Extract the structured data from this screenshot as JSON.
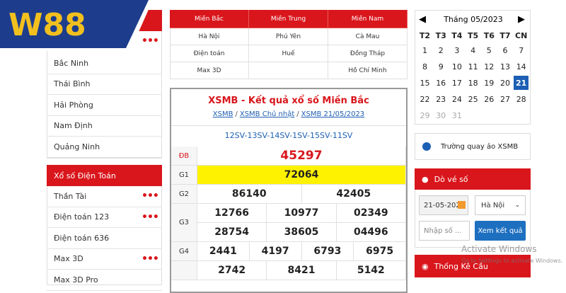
{
  "logo": "W88",
  "sidebar": {
    "province_list": [
      "Bắc Ninh",
      "Thái Bình",
      "Hải Phòng",
      "Nam Định",
      "Quảng Ninh"
    ],
    "dien_toan": {
      "title": "Xổ số Điện Toán",
      "items": [
        {
          "label": "Thần Tài",
          "has_more": true
        },
        {
          "label": "Điện toán 123",
          "has_more": true
        },
        {
          "label": "Điện toán 636",
          "has_more": false
        },
        {
          "label": "Max 3D",
          "has_more": true
        },
        {
          "label": "Max 3D Pro",
          "has_more": false
        }
      ]
    }
  },
  "regions": {
    "headers": [
      "Miền Bắc",
      "Miền Trung",
      "Miền Nam"
    ],
    "rows": [
      [
        "Hà Nội",
        "Phú Yên",
        "Cà Mau"
      ],
      [
        "Điện toán",
        "Huế",
        "Đồng Tháp"
      ],
      [
        "Max 3D",
        null,
        "Hồ Chí Minh"
      ]
    ]
  },
  "results": {
    "title": "XSMB - Kết quả xổ số Miền Bắc",
    "breadcrumb": [
      "XSMB",
      "XSMB Chủ nhật",
      "XSMB 21/05/2023"
    ],
    "separator": "/",
    "codes": "12SV-13SV-14SV-1SV-15SV-11SV",
    "prizes": [
      {
        "label": "ĐB",
        "rows": [
          [
            "45297"
          ]
        ],
        "special": true
      },
      {
        "label": "G1",
        "rows": [
          [
            "72064"
          ]
        ],
        "highlight": true
      },
      {
        "label": "G2",
        "rows": [
          [
            "86140",
            "42405"
          ]
        ]
      },
      {
        "label": "G3",
        "rows": [
          [
            "12766",
            "10977",
            "02349"
          ],
          [
            "28754",
            "38605",
            "04496"
          ]
        ]
      },
      {
        "label": "G4",
        "rows": [
          [
            "2441",
            "4197",
            "6793",
            "6975"
          ]
        ]
      },
      {
        "label": null,
        "rows": [
          [
            "2742",
            "8421",
            "5142"
          ]
        ]
      }
    ]
  },
  "calendar": {
    "title": "Tháng 05/2023",
    "weekdays": [
      "T2",
      "T3",
      "T4",
      "T5",
      "T6",
      "T7",
      "CN"
    ],
    "weeks": [
      [
        1,
        2,
        3,
        4,
        5,
        6,
        7
      ],
      [
        8,
        9,
        10,
        11,
        12,
        13,
        14
      ],
      [
        15,
        16,
        17,
        18,
        19,
        20,
        21
      ],
      [
        22,
        23,
        24,
        25,
        26,
        27,
        28
      ],
      [
        29,
        30,
        31
      ]
    ],
    "selected": 21
  },
  "studio": "Trường quay ảo XSMB",
  "ticket_check": {
    "title": "Dò vé số",
    "date": "21-05-202",
    "province": "Hà Nội",
    "number_placeholder": "Nhập số ...",
    "button": "Xem kết quả"
  },
  "stats": {
    "title": "Thống Kê Cầu"
  },
  "watermark": {
    "title": "Activate Windows",
    "subtitle": "Go to Settings to activate Windows."
  }
}
